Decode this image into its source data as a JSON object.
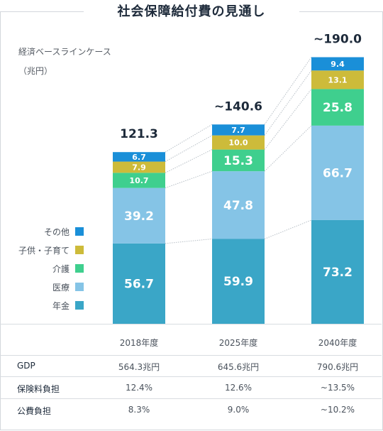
{
  "title": "社会保障給付費の見通し",
  "subtitle": "経済ベースラインケース",
  "unit": "（兆円）",
  "colors": {
    "年金": "#3aa6c7",
    "医療": "#85c4e6",
    "介護": "#3fcf8e",
    "子供・子育て": "#cdbb3a",
    "その他": "#1a8fd8"
  },
  "chart_data": {
    "type": "bar",
    "stacked": true,
    "title": "社会保障給付費の見通し",
    "ylabel": "（兆円）",
    "categories": [
      "2018年度",
      "2025年度",
      "2040年度"
    ],
    "series": [
      {
        "name": "年金",
        "values": [
          56.7,
          59.9,
          73.2
        ]
      },
      {
        "name": "医療",
        "values": [
          39.2,
          47.8,
          66.7
        ]
      },
      {
        "name": "介護",
        "values": [
          10.7,
          15.3,
          25.8
        ]
      },
      {
        "name": "子供・子育て",
        "values": [
          7.9,
          10.0,
          13.1
        ]
      },
      {
        "name": "その他",
        "values": [
          6.7,
          7.7,
          9.4
        ]
      }
    ],
    "totals": [
      "121.3",
      "~140.6",
      "~190.0"
    ],
    "legend_position": "left",
    "grid": false
  },
  "table": {
    "rows": [
      {
        "label": "GDP",
        "values": [
          "564.3兆円",
          "645.6兆円",
          "790.6兆円"
        ]
      },
      {
        "label": "保険料負担",
        "values": [
          "12.4%",
          "12.6%",
          "~13.5%"
        ]
      },
      {
        "label": "公費負担",
        "values": [
          "8.3%",
          "9.0%",
          "~10.2%"
        ]
      }
    ]
  }
}
